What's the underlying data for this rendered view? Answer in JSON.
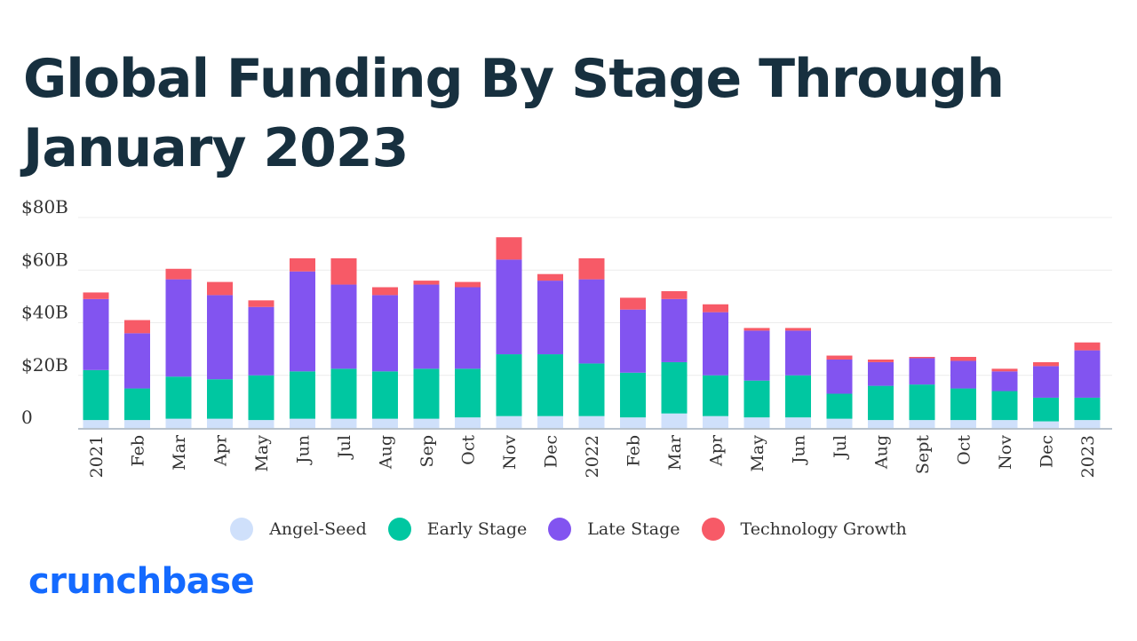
{
  "title": "Global Funding By Stage Through January 2023",
  "brand": {
    "name": "crunchbase",
    "color": "#146aff"
  },
  "colors": {
    "angel_seed": "#cfe0fb",
    "early": "#00c7a1",
    "late": "#8254f0",
    "tech": "#f75a67",
    "grid": "#ececec",
    "axis": "#b8c2cc"
  },
  "chart_data": {
    "type": "bar",
    "stacked": true,
    "title": "Global Funding By Stage Through January 2023",
    "xlabel": "",
    "ylabel": "",
    "ylim": [
      0,
      80
    ],
    "yticks": [
      0,
      20,
      40,
      60,
      80
    ],
    "ytick_labels": [
      "0",
      "$20B",
      "$40B",
      "$60B",
      "$80B"
    ],
    "grid": true,
    "legend_position": "bottom",
    "categories": [
      "2021",
      "Feb",
      "Mar",
      "Apr",
      "May",
      "Jun",
      "Jul",
      "Aug",
      "Sep",
      "Oct",
      "Nov",
      "Dec",
      "2022",
      "Feb",
      "Mar",
      "Apr",
      "May",
      "Jun",
      "Jul",
      "Aug",
      "Sept",
      "Oct",
      "Nov",
      "Dec",
      "2023"
    ],
    "series": [
      {
        "name": "Angel-Seed",
        "color": "#cfe0fb",
        "values": [
          3,
          3,
          3.5,
          3.5,
          3,
          3.5,
          3.5,
          3.5,
          3.5,
          4,
          4.5,
          4.5,
          4.5,
          4,
          5.5,
          4.5,
          4,
          4,
          3.5,
          3,
          3,
          3,
          3,
          2.5,
          3
        ]
      },
      {
        "name": "Early Stage",
        "color": "#00c7a1",
        "values": [
          19,
          12,
          16,
          15,
          17,
          18,
          19,
          18,
          19,
          18.5,
          23.5,
          23.5,
          20,
          17,
          19.5,
          15.5,
          14,
          16,
          9.5,
          13,
          13.5,
          12,
          11,
          9,
          8.5
        ]
      },
      {
        "name": "Late Stage",
        "color": "#8254f0",
        "values": [
          27,
          21,
          37,
          32,
          26,
          38,
          32,
          29,
          32,
          31,
          36,
          28,
          32,
          24,
          24,
          24,
          19,
          17,
          13,
          9,
          10,
          10.5,
          7.5,
          12,
          18
        ]
      },
      {
        "name": "Technology Growth",
        "color": "#f75a67",
        "values": [
          2.5,
          5,
          4,
          5,
          2.5,
          5,
          10,
          3,
          1.5,
          2,
          8.5,
          2.5,
          8,
          4.5,
          3,
          3,
          1,
          1,
          1.5,
          1,
          0.5,
          1.5,
          1,
          1.5,
          3
        ]
      }
    ]
  }
}
